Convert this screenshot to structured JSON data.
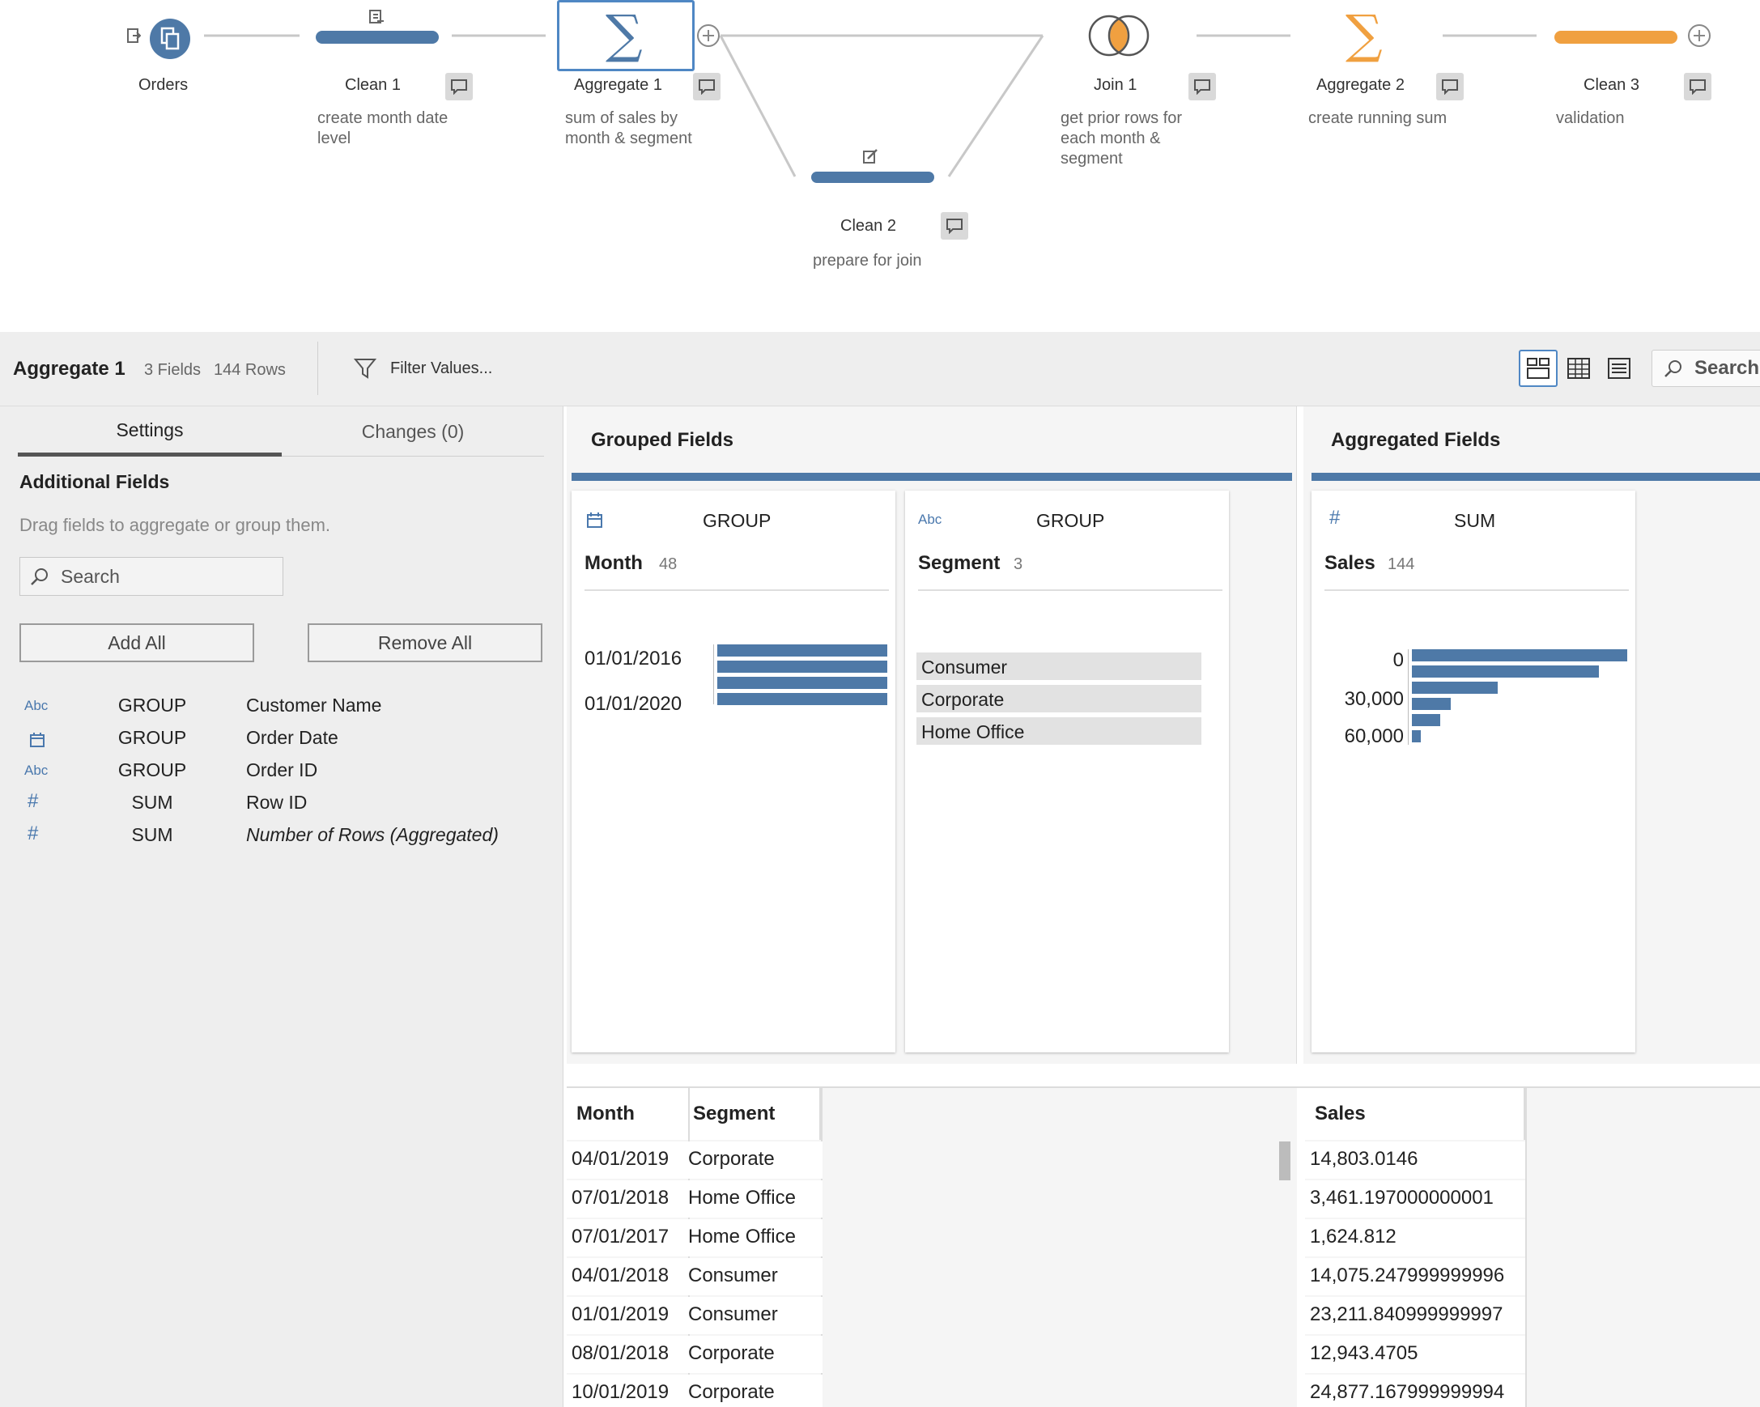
{
  "flow": {
    "nodes": {
      "orders": {
        "label": "Orders"
      },
      "clean1": {
        "label": "Clean 1",
        "description": "create month date level"
      },
      "aggregate1": {
        "label": "Aggregate 1",
        "description": "sum of sales by month & segment"
      },
      "clean2": {
        "label": "Clean 2",
        "description": "prepare for join"
      },
      "join1": {
        "label": "Join 1",
        "description": "get prior rows for each month & segment"
      },
      "aggregate2": {
        "label": "Aggregate 2",
        "description": "create running sum"
      },
      "clean3": {
        "label": "Clean 3",
        "description": "validation"
      }
    }
  },
  "toolbar": {
    "step_name": "Aggregate 1",
    "fields": "3 Fields",
    "rows": "144 Rows",
    "filter_label": "Filter Values...",
    "search_label": "Search"
  },
  "left_panel": {
    "tabs": [
      "Settings",
      "Changes (0)"
    ],
    "title": "Additional Fields",
    "hint": "Drag fields to aggregate or group them.",
    "search_placeholder": "Search",
    "add_all": "Add All",
    "remove_all": "Remove All",
    "fields": [
      {
        "type": "Abc",
        "op": "GROUP",
        "name": "Customer Name"
      },
      {
        "type": "date",
        "op": "GROUP",
        "name": "Order Date"
      },
      {
        "type": "Abc",
        "op": "GROUP",
        "name": "Order ID"
      },
      {
        "type": "#",
        "op": "SUM",
        "name": "Row ID"
      },
      {
        "type": "#",
        "op": "SUM",
        "name": "Number of Rows (Aggregated)"
      }
    ]
  },
  "grouped": {
    "title": "Grouped Fields",
    "month": {
      "icon": "date",
      "op": "GROUP",
      "name": "Month",
      "count": "48",
      "ticks": [
        "01/01/2016",
        "01/01/2020"
      ],
      "bars": [
        1,
        1,
        1,
        1
      ]
    },
    "segment": {
      "icon": "Abc",
      "op": "GROUP",
      "name": "Segment",
      "count": "3",
      "values": [
        "Consumer",
        "Corporate",
        "Home Office"
      ]
    }
  },
  "aggregated": {
    "title": "Aggregated Fields",
    "sales": {
      "icon": "#",
      "op": "SUM",
      "name": "Sales",
      "count": "144",
      "ticks": [
        "0",
        "30,000",
        "60,000"
      ],
      "bars": [
        1.0,
        0.87,
        0.4,
        0.18,
        0.13,
        0.04
      ]
    }
  },
  "grid": {
    "headers": [
      "Month",
      "Segment",
      "Sales"
    ],
    "rows": [
      [
        "04/01/2019",
        "Corporate",
        "14,803.0146"
      ],
      [
        "07/01/2018",
        "Home Office",
        "3,461.197000000001"
      ],
      [
        "07/01/2017",
        "Home Office",
        "1,624.812"
      ],
      [
        "04/01/2018",
        "Consumer",
        "14,075.247999999996"
      ],
      [
        "01/01/2019",
        "Consumer",
        "23,211.840999999997"
      ],
      [
        "08/01/2018",
        "Corporate",
        "12,943.4705"
      ],
      [
        "10/01/2019",
        "Corporate",
        "24,877.167999999994"
      ]
    ]
  },
  "colors": {
    "blue": "#4e79a7",
    "orange": "#f0a040",
    "selection": "#4f87c4"
  }
}
